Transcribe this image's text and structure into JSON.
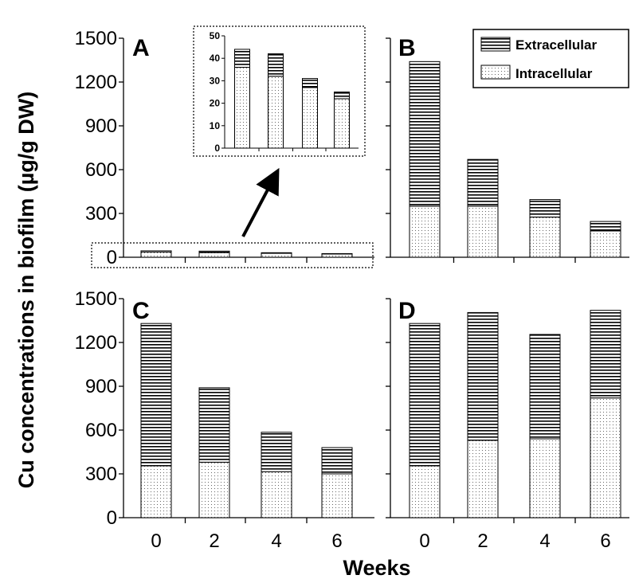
{
  "figure": {
    "ylabel": "Cu concentrations in biofilm (µg/g DW)",
    "xlabel": "Weeks"
  },
  "legend": {
    "placement": "top-right",
    "entries": [
      {
        "label": "Extracellular",
        "pattern": "horizontal-stripes"
      },
      {
        "label": "Intracellular",
        "pattern": "dots"
      }
    ]
  },
  "colors": {
    "axis": "#000000",
    "bar_outline": "#000000",
    "stripe": "#000000",
    "dot": "#555555",
    "background": "#ffffff"
  },
  "chart_data": [
    {
      "type": "bar",
      "stacked": true,
      "panel": "A",
      "categories": [
        "0",
        "2",
        "4",
        "6"
      ],
      "ylim": [
        0,
        1500
      ],
      "yticks": [
        "0",
        "300",
        "600",
        "900",
        "1200",
        "1500"
      ],
      "xlabel": "",
      "ylabel": "",
      "series": [
        {
          "name": "Intracellular",
          "values": [
            36,
            32,
            27,
            22
          ]
        },
        {
          "name": "Extracellular",
          "values": [
            8,
            10,
            4,
            3
          ]
        }
      ]
    },
    {
      "type": "bar",
      "stacked": true,
      "panel": "A-inset",
      "categories": [
        "0",
        "2",
        "4",
        "6"
      ],
      "ylim": [
        0,
        50
      ],
      "yticks": [
        "0",
        "10",
        "20",
        "30",
        "40",
        "50"
      ],
      "series": [
        {
          "name": "Intracellular",
          "values": [
            36,
            32,
            27,
            22
          ]
        },
        {
          "name": "Extracellular",
          "values": [
            8,
            10,
            4,
            3
          ]
        }
      ]
    },
    {
      "type": "bar",
      "stacked": true,
      "panel": "B",
      "categories": [
        "0",
        "2",
        "4",
        "6"
      ],
      "ylim": [
        0,
        1500
      ],
      "series": [
        {
          "name": "Intracellular",
          "values": [
            350,
            350,
            275,
            180
          ]
        },
        {
          "name": "Extracellular",
          "values": [
            990,
            320,
            120,
            65
          ]
        }
      ]
    },
    {
      "type": "bar",
      "stacked": true,
      "panel": "C",
      "categories": [
        "0",
        "2",
        "4",
        "6"
      ],
      "ylim": [
        0,
        1500
      ],
      "yticks": [
        "0",
        "300",
        "600",
        "900",
        "1200",
        "1500"
      ],
      "xticks": [
        "0",
        "2",
        "4",
        "6"
      ],
      "series": [
        {
          "name": "Intracellular",
          "values": [
            355,
            380,
            315,
            300
          ]
        },
        {
          "name": "Extracellular",
          "values": [
            975,
            510,
            270,
            180
          ]
        }
      ]
    },
    {
      "type": "bar",
      "stacked": true,
      "panel": "D",
      "categories": [
        "0",
        "2",
        "4",
        "6"
      ],
      "ylim": [
        0,
        1500
      ],
      "xticks": [
        "0",
        "2",
        "4",
        "6"
      ],
      "series": [
        {
          "name": "Intracellular",
          "values": [
            355,
            530,
            540,
            820
          ]
        },
        {
          "name": "Extracellular",
          "values": [
            975,
            875,
            715,
            600
          ]
        }
      ]
    }
  ]
}
